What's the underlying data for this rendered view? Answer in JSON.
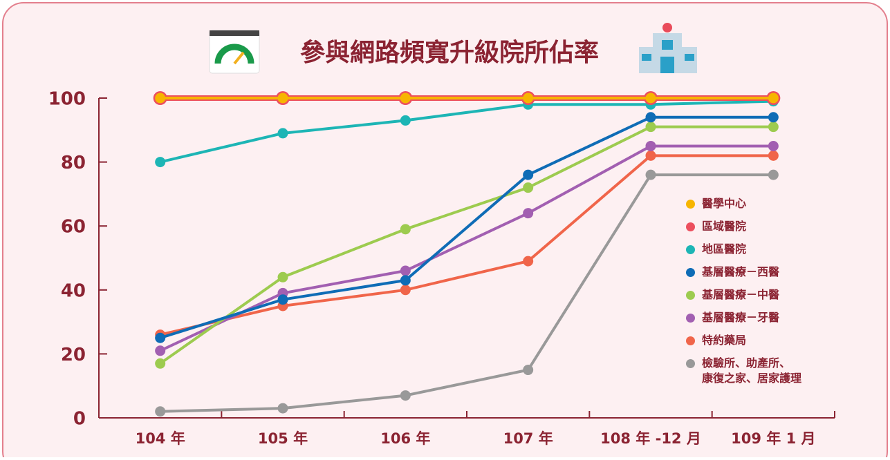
{
  "chart_data": {
    "type": "line",
    "title": "參與網路頻寬升級院所佔率",
    "categories": [
      "104 年",
      "105 年",
      "106 年",
      "107 年",
      "108 年 -12 月",
      "109 年 1 月"
    ],
    "ylim": [
      0,
      100
    ],
    "yticks": [
      0,
      20,
      40,
      60,
      80,
      100
    ],
    "series": [
      {
        "name": "醫學中心",
        "color": "#f7b500",
        "values": [
          100,
          100,
          100,
          100,
          100,
          100
        ]
      },
      {
        "name": "區域醫院",
        "color": "#ec4f5e",
        "values": [
          100,
          100,
          100,
          100,
          100,
          100
        ]
      },
      {
        "name": "地區醫院",
        "color": "#1db5b5",
        "values": [
          80,
          89,
          93,
          98,
          98,
          99
        ]
      },
      {
        "name": "基層醫療－西醫",
        "color": "#0f6cb6",
        "values": [
          25,
          37,
          43,
          76,
          94,
          94
        ]
      },
      {
        "name": "基層醫療－中醫",
        "color": "#9dcb4f",
        "values": [
          17,
          44,
          59,
          72,
          91,
          91
        ]
      },
      {
        "name": "基層醫療－牙醫",
        "color": "#a25fb1",
        "values": [
          21,
          39,
          46,
          64,
          85,
          85
        ]
      },
      {
        "name": "特約藥局",
        "color": "#f0654a",
        "values": [
          26,
          35,
          40,
          49,
          82,
          82
        ]
      },
      {
        "name": "檢驗所、助產所、\n康復之家、居家護理",
        "color": "#999999",
        "values": [
          2,
          3,
          7,
          15,
          76,
          76
        ]
      }
    ]
  }
}
